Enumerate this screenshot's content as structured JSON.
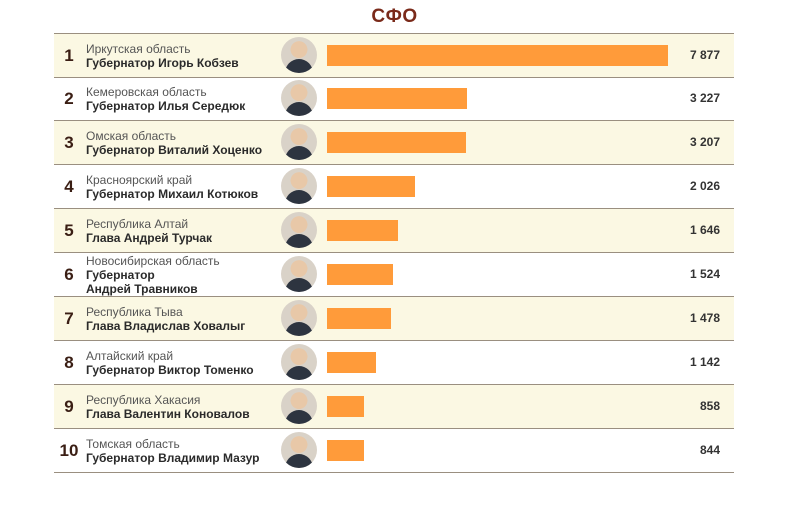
{
  "chart_data": {
    "type": "bar",
    "title": "СФО",
    "orientation": "horizontal",
    "xlim": [
      0,
      7877
    ],
    "grid": false,
    "bar_color": "#ff9b3a",
    "rows": [
      {
        "rank": "1",
        "region": "Иркутская область",
        "person": "Губернатор Игорь Кобзев",
        "value": 7877,
        "value_label": "7 877"
      },
      {
        "rank": "2",
        "region": "Кемеровская область",
        "person": "Губернатор Илья Середюк",
        "value": 3227,
        "value_label": "3 227"
      },
      {
        "rank": "3",
        "region": "Омская область",
        "person": "Губернатор Виталий Хоценко",
        "value": 3207,
        "value_label": "3 207"
      },
      {
        "rank": "4",
        "region": "Красноярский край",
        "person": "Губернатор Михаил Котюков",
        "value": 2026,
        "value_label": "2 026"
      },
      {
        "rank": "5",
        "region": "Республика Алтай",
        "person": "Глава Андрей Турчак",
        "value": 1646,
        "value_label": "1 646"
      },
      {
        "rank": "6",
        "region": "Новосибирская область",
        "person": "Губернатор\nАндрей Травников",
        "value": 1524,
        "value_label": "1 524"
      },
      {
        "rank": "7",
        "region": "Республика Тыва",
        "person": "Глава Владислав Ховалыг",
        "value": 1478,
        "value_label": "1 478"
      },
      {
        "rank": "8",
        "region": "Алтайский край",
        "person": "Губернатор Виктор Томенко",
        "value": 1142,
        "value_label": "1 142"
      },
      {
        "rank": "9",
        "region": "Республика Хакасия",
        "person": "Глава Валентин Коновалов",
        "value": 858,
        "value_label": "858"
      },
      {
        "rank": "10",
        "region": "Томская область",
        "person": "Губернатор Владимир Мазур",
        "value": 844,
        "value_label": "844"
      }
    ]
  }
}
